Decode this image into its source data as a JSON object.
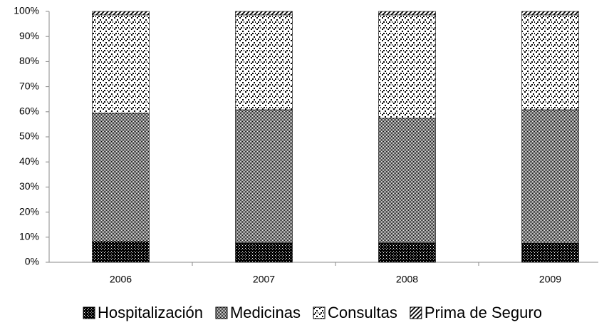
{
  "chart_data": {
    "type": "stacked_bar",
    "categories": [
      "2006",
      "2007",
      "2008",
      "2009"
    ],
    "series": [
      {
        "name": "Hospitalización",
        "color": "#000000",
        "values": [
          8.2,
          7.7,
          7.7,
          7.6
        ]
      },
      {
        "name": "Medicinas",
        "color": "#000000",
        "values": [
          51.2,
          53.1,
          49.7,
          53.2
        ]
      },
      {
        "name": "Consultas",
        "color": "#000000",
        "values": [
          39.2,
          37.8,
          41.2,
          37.8
        ]
      },
      {
        "name": "Prima de Seguro",
        "color": "#000000",
        "values": [
          1.4,
          1.4,
          1.4,
          1.4
        ]
      }
    ],
    "ylim": [
      0,
      100
    ],
    "yticks": [
      {
        "value": 0,
        "label": "0%"
      },
      {
        "value": 10,
        "label": "10%"
      },
      {
        "value": 20,
        "label": "20%"
      },
      {
        "value": 30,
        "label": "30%"
      },
      {
        "value": 40,
        "label": "40%"
      },
      {
        "value": 50,
        "label": "50%"
      },
      {
        "value": 60,
        "label": "60%"
      },
      {
        "value": 70,
        "label": "70%"
      },
      {
        "value": 80,
        "label": "80%"
      },
      {
        "value": 90,
        "label": "90%"
      },
      {
        "value": 100,
        "label": "100%"
      }
    ],
    "legend": "bottom"
  }
}
